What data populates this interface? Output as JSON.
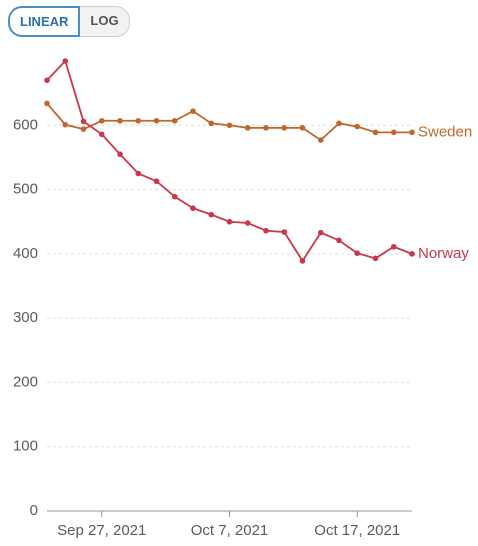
{
  "controls": {
    "scale_buttons": [
      "LINEAR",
      "LOG"
    ],
    "selected": "LINEAR"
  },
  "chart_data": {
    "type": "line",
    "categories": [
      null,
      null,
      null,
      "Sep 27, 2021",
      null,
      null,
      null,
      null,
      null,
      null,
      "Oct 7, 2021",
      null,
      null,
      null,
      null,
      null,
      null,
      "Oct 17, 2021",
      null,
      null,
      null
    ],
    "series": [
      {
        "name": "Sweden",
        "color": "#c0672b",
        "values": [
          634,
          601,
          594,
          607,
          607,
          607,
          607,
          607,
          622,
          603,
          600,
          596,
          596,
          596,
          596,
          577,
          603,
          598,
          589,
          589,
          589
        ]
      },
      {
        "name": "Norway",
        "color": "#c8374a",
        "values": [
          670,
          700,
          606,
          586,
          555,
          525,
          513,
          489,
          471,
          461,
          450,
          448,
          436,
          434,
          389,
          433,
          421,
          401,
          393,
          411,
          400
        ]
      }
    ],
    "ylim": [
      0,
      700
    ],
    "yticks": [
      0,
      100,
      200,
      300,
      400,
      500,
      600
    ],
    "grid": true
  }
}
